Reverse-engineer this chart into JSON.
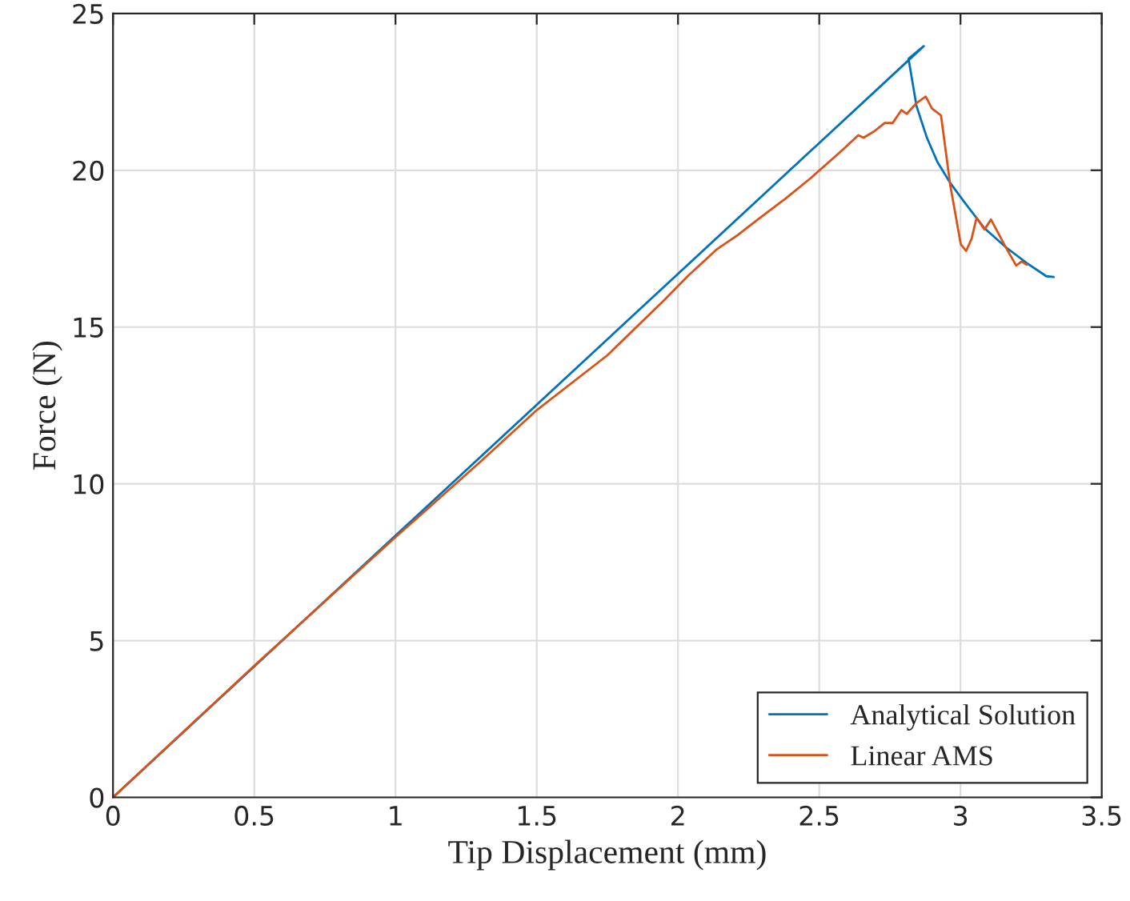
{
  "chart_data": {
    "type": "line",
    "xlabel": "Tip Displacement (mm)",
    "ylabel": "Force (N)",
    "xlim": [
      0,
      3.5
    ],
    "ylim": [
      0,
      25
    ],
    "xticks": [
      0,
      0.5,
      1,
      1.5,
      2,
      2.5,
      3,
      3.5
    ],
    "yticks": [
      0,
      5,
      10,
      15,
      20,
      25
    ],
    "grid": true,
    "legend": "bottom right",
    "line_style": "solid",
    "marker": "none",
    "series": [
      {
        "name": "Analytical Solution",
        "color": "#0072bd",
        "x": [
          0,
          2.87,
          2.816,
          2.844,
          2.881,
          2.918,
          2.964,
          3.02,
          3.085,
          3.16,
          3.235,
          3.304,
          3.33
        ],
        "values": [
          0,
          23.96,
          23.56,
          22.06,
          21.04,
          20.27,
          19.59,
          18.91,
          18.15,
          17.55,
          17.04,
          16.62,
          16.6
        ]
      },
      {
        "name": "Linear AMS",
        "color": "#d95319",
        "x": [
          0,
          0.5,
          1.0,
          1.3,
          1.5,
          1.75,
          1.95,
          2.034,
          2.136,
          2.211,
          2.285,
          2.378,
          2.471,
          2.546,
          2.592,
          2.638,
          2.657,
          2.694,
          2.732,
          2.76,
          2.791,
          2.81,
          2.844,
          2.877,
          2.899,
          2.931,
          2.964,
          3.001,
          3.02,
          3.039,
          3.057,
          3.085,
          3.108,
          3.16,
          3.197,
          3.216,
          3.235
        ],
        "values": [
          0,
          4.2,
          8.3,
          10.7,
          12.35,
          14.1,
          15.85,
          16.62,
          17.47,
          17.93,
          18.45,
          19.08,
          19.76,
          20.36,
          20.73,
          21.12,
          21.04,
          21.24,
          21.51,
          21.51,
          21.92,
          21.8,
          22.14,
          22.35,
          21.97,
          21.75,
          19.51,
          17.64,
          17.43,
          17.81,
          18.49,
          18.11,
          18.43,
          17.55,
          16.96,
          17.09,
          16.99
        ]
      }
    ]
  }
}
